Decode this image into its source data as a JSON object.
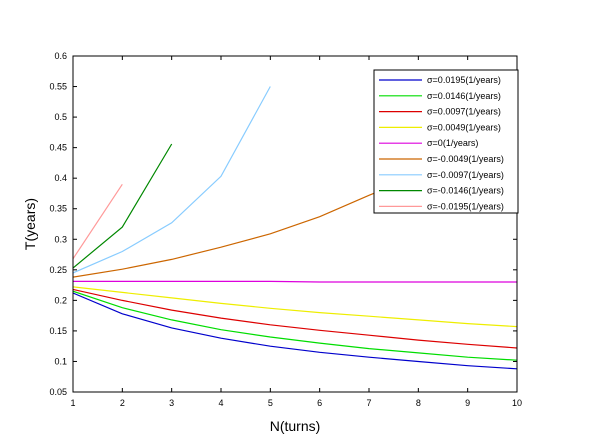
{
  "chart_data": {
    "type": "line",
    "title": "",
    "xlabel": "N(turns)",
    "ylabel": "T(years)",
    "xlim": [
      1,
      10
    ],
    "ylim": [
      0.05,
      0.6
    ],
    "xticks": [
      1,
      2,
      3,
      4,
      5,
      6,
      7,
      8,
      9,
      10
    ],
    "yticks": [
      0.05,
      0.1,
      0.15,
      0.2,
      0.25,
      0.3,
      0.35,
      0.4,
      0.45,
      0.5,
      0.55,
      0.6
    ],
    "ytick_labels": [
      "0.05",
      "0.1",
      "0.15",
      "0.2",
      "0.25",
      "0.3",
      "0.35",
      "0.4",
      "0.45",
      "0.5",
      "0.55",
      "0.6"
    ],
    "grid": false,
    "legend_position": "top-right",
    "series": [
      {
        "name": "σ=0.0195(1/years)",
        "color": "#0000cc",
        "x": [
          1,
          2,
          3,
          4,
          5,
          6,
          7,
          8,
          9,
          10
        ],
        "y": [
          0.212,
          0.178,
          0.155,
          0.138,
          0.125,
          0.115,
          0.107,
          0.1,
          0.093,
          0.088
        ]
      },
      {
        "name": "σ=0.0146(1/years)",
        "color": "#00dd00",
        "x": [
          1,
          2,
          3,
          4,
          5,
          6,
          7,
          8,
          9,
          10
        ],
        "y": [
          0.215,
          0.188,
          0.168,
          0.152,
          0.14,
          0.13,
          0.121,
          0.114,
          0.107,
          0.102
        ]
      },
      {
        "name": "σ=0.0097(1/years)",
        "color": "#dd0000",
        "x": [
          1,
          2,
          3,
          4,
          5,
          6,
          7,
          8,
          9,
          10
        ],
        "y": [
          0.218,
          0.2,
          0.184,
          0.171,
          0.16,
          0.151,
          0.143,
          0.135,
          0.128,
          0.122
        ]
      },
      {
        "name": "σ=0.0049(1/years)",
        "color": "#eeee00",
        "x": [
          1,
          2,
          3,
          4,
          5,
          6,
          7,
          8,
          9,
          10
        ],
        "y": [
          0.222,
          0.213,
          0.204,
          0.195,
          0.187,
          0.18,
          0.174,
          0.168,
          0.162,
          0.157
        ]
      },
      {
        "name": "σ=0(1/years)",
        "color": "#dd00dd",
        "x": [
          1,
          2,
          3,
          4,
          5,
          6,
          7,
          8,
          9,
          10
        ],
        "y": [
          0.231,
          0.231,
          0.231,
          0.231,
          0.231,
          0.23,
          0.23,
          0.23,
          0.23,
          0.23
        ]
      },
      {
        "name": "σ=-0.0049(1/years)",
        "color": "#cc6600",
        "x": [
          1,
          2,
          3,
          4,
          5,
          6,
          7,
          8
        ],
        "y": [
          0.238,
          0.251,
          0.267,
          0.287,
          0.309,
          0.337,
          0.372,
          0.405
        ]
      },
      {
        "name": "σ=-0.0097(1/years)",
        "color": "#88ccff",
        "x": [
          1,
          2,
          3,
          4,
          5
        ],
        "y": [
          0.245,
          0.28,
          0.327,
          0.403,
          0.55
        ]
      },
      {
        "name": "σ=-0.0146(1/years)",
        "color": "#008800",
        "x": [
          1,
          2,
          3
        ],
        "y": [
          0.253,
          0.32,
          0.456
        ]
      },
      {
        "name": "σ=-0.0195(1/years)",
        "color": "#ff9999",
        "x": [
          1,
          2
        ],
        "y": [
          0.268,
          0.39
        ]
      }
    ]
  }
}
